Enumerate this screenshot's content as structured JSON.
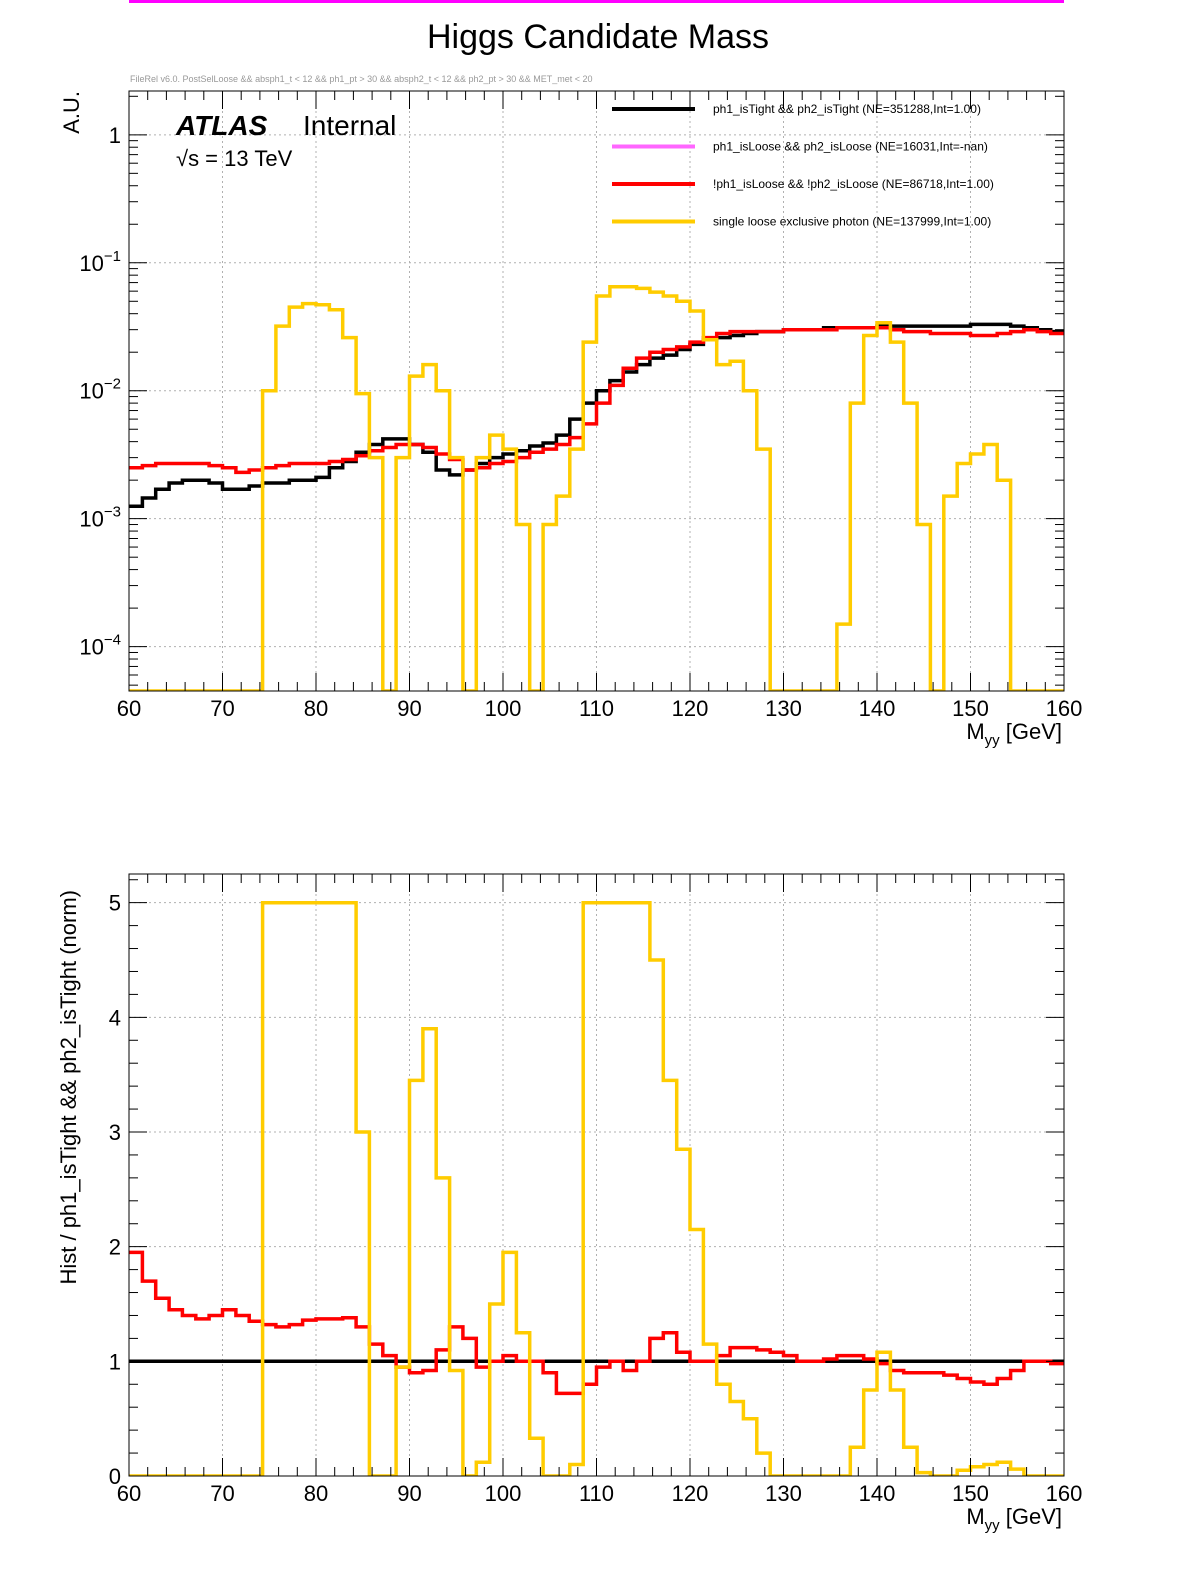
{
  "title": "Higgs Candidate Mass",
  "cut_string": "FileRel v6.0. PostSelLoose && absph1_t < 12 && ph1_pt > 30 && absph2_t < 12 && ph2_pt > 30 && MET_met < 20",
  "atlas_label": "ATLAS",
  "atlas_status": "Internal",
  "energy_label": "√s = 13 TeV",
  "colors": {
    "black": "#000000",
    "magenta": "#ff66ff",
    "red": "#ff0000",
    "yellow": "#ffcc00",
    "topline": "#ff00ff"
  },
  "chart_data": [
    {
      "type": "line",
      "title": "Higgs Candidate Mass",
      "xlabel": "M",
      "xlabel_sub": "yy",
      "xlabel_unit": " [GeV]",
      "ylabel": "A.U.",
      "yscale": "log",
      "xlim": [
        60,
        160
      ],
      "ylim": [
        4.5e-05,
        2.2
      ],
      "x_ticks": [
        60,
        70,
        80,
        90,
        100,
        110,
        120,
        130,
        140,
        150,
        160
      ],
      "x_tick_labels": [
        "60",
        "70",
        "80",
        "90",
        "100",
        "110",
        "120",
        "130",
        "140",
        "150",
        "160"
      ],
      "y_ticks": [
        1,
        0.1,
        0.01,
        0.001,
        0.0001
      ],
      "y_tick_labels": [
        {
          "base": "1",
          "exp": ""
        },
        {
          "base": "10",
          "exp": "−1"
        },
        {
          "base": "10",
          "exp": "−2"
        },
        {
          "base": "10",
          "exp": "−3"
        },
        {
          "base": "10",
          "exp": "−4"
        }
      ],
      "legend_position": "top-right",
      "bin_edges_start": 60,
      "bin_width": 1.4286,
      "series": [
        {
          "name": "ph1_isTight && ph2_isTight (NE=351288,Int=1.00)",
          "color": "#000000",
          "values": [
            0.00125,
            0.00145,
            0.0017,
            0.0019,
            0.002,
            0.002,
            0.0019,
            0.0017,
            0.0017,
            0.0018,
            0.0019,
            0.0019,
            0.002,
            0.002,
            0.0021,
            0.0025,
            0.0028,
            0.0033,
            0.0038,
            0.0042,
            0.0042,
            0.0038,
            0.0033,
            0.0024,
            0.0022,
            0.0024,
            0.0027,
            0.003,
            0.0032,
            0.0034,
            0.0037,
            0.0039,
            0.0045,
            0.006,
            0.008,
            0.01,
            0.012,
            0.014,
            0.016,
            0.018,
            0.019,
            0.021,
            0.023,
            0.025,
            0.026,
            0.027,
            0.028,
            0.029,
            0.029,
            0.03,
            0.03,
            0.03,
            0.031,
            0.031,
            0.031,
            0.031,
            0.032,
            0.032,
            0.032,
            0.032,
            0.032,
            0.032,
            0.032,
            0.033,
            0.033,
            0.033,
            0.032,
            0.031,
            0.03,
            0.029
          ]
        },
        {
          "name": "ph1_isLoose && ph2_isLoose (NE=16031,Int=-nan)",
          "color": "#ff66ff",
          "values": []
        },
        {
          "name": "!ph1_isLoose && !ph2_isLoose (NE=86718,Int=1.00)",
          "color": "#ff0000",
          "values": [
            0.0025,
            0.0026,
            0.0027,
            0.0027,
            0.0027,
            0.0027,
            0.0026,
            0.0025,
            0.0023,
            0.0024,
            0.0025,
            0.0026,
            0.0027,
            0.0027,
            0.0027,
            0.0028,
            0.0029,
            0.0031,
            0.0034,
            0.0036,
            0.0038,
            0.0038,
            0.0036,
            0.0032,
            0.0029,
            0.0024,
            0.0025,
            0.0027,
            0.0028,
            0.003,
            0.0033,
            0.0035,
            0.0038,
            0.0043,
            0.0055,
            0.008,
            0.011,
            0.015,
            0.018,
            0.02,
            0.021,
            0.022,
            0.024,
            0.026,
            0.028,
            0.029,
            0.029,
            0.029,
            0.029,
            0.03,
            0.03,
            0.03,
            0.03,
            0.031,
            0.031,
            0.031,
            0.031,
            0.03,
            0.029,
            0.029,
            0.028,
            0.028,
            0.028,
            0.027,
            0.027,
            0.028,
            0.029,
            0.03,
            0.029,
            0.028
          ]
        },
        {
          "name": "single loose exclusive photon (NE=137999,Int=1.00)",
          "color": "#ffcc00",
          "values": [
            0,
            0,
            0,
            0,
            0,
            0,
            0,
            0,
            0,
            0,
            0.01,
            0.032,
            0.045,
            0.048,
            0.047,
            0.043,
            0.026,
            0.0095,
            0.003,
            0,
            0.003,
            0.013,
            0.016,
            0.01,
            0.003,
            0,
            0.003,
            0.0045,
            0.0035,
            0.0009,
            0,
            0.0009,
            0.0015,
            0.0035,
            0.024,
            0.055,
            0.065,
            0.065,
            0.063,
            0.059,
            0.055,
            0.05,
            0.042,
            0.025,
            0.016,
            0.017,
            0.01,
            0.0035,
            0,
            0,
            0,
            0,
            0,
            0.00015,
            0.008,
            0.027,
            0.034,
            0.024,
            0.008,
            0.0009,
            0,
            0.0015,
            0.0027,
            0.0032,
            0.0038,
            0.002,
            0,
            0,
            0,
            0
          ]
        }
      ]
    },
    {
      "type": "line",
      "xlabel": "M",
      "xlabel_sub": "yy",
      "xlabel_unit": " [GeV]",
      "ylabel": "Hist / ph1_isTight && ph2_isTight (norm)",
      "xlim": [
        60,
        160
      ],
      "ylim": [
        0,
        5.25
      ],
      "x_ticks": [
        60,
        70,
        80,
        90,
        100,
        110,
        120,
        130,
        140,
        150,
        160
      ],
      "x_tick_labels": [
        "60",
        "70",
        "80",
        "90",
        "100",
        "110",
        "120",
        "130",
        "140",
        "150",
        "160"
      ],
      "y_ticks": [
        0,
        1,
        2,
        3,
        4,
        5
      ],
      "y_tick_labels": [
        "0",
        "1",
        "2",
        "3",
        "4",
        "5"
      ],
      "bin_edges_start": 60,
      "bin_width": 1.4286,
      "series": [
        {
          "name": "ph1_isTight && ph2_isTight",
          "color": "#000000",
          "values": [
            1,
            1,
            1,
            1,
            1,
            1,
            1,
            1,
            1,
            1,
            1,
            1,
            1,
            1,
            1,
            1,
            1,
            1,
            1,
            1,
            1,
            1,
            1,
            1,
            1,
            1,
            1,
            1,
            1,
            1,
            1,
            1,
            1,
            1,
            1,
            1,
            1,
            1,
            1,
            1,
            1,
            1,
            1,
            1,
            1,
            1,
            1,
            1,
            1,
            1,
            1,
            1,
            1,
            1,
            1,
            1,
            1,
            1,
            1,
            1,
            1,
            1,
            1,
            1,
            1,
            1,
            1,
            1,
            1,
            1
          ]
        },
        {
          "name": "!ph1_isLoose && !ph2_isLoose",
          "color": "#ff0000",
          "values": [
            1.95,
            1.7,
            1.55,
            1.45,
            1.4,
            1.37,
            1.4,
            1.45,
            1.4,
            1.35,
            1.32,
            1.3,
            1.32,
            1.36,
            1.37,
            1.37,
            1.38,
            1.3,
            1.15,
            1.05,
            0.95,
            0.9,
            0.92,
            1.1,
            1.3,
            1.2,
            0.95,
            1.0,
            1.05,
            1.0,
            1.0,
            0.9,
            0.72,
            0.72,
            0.8,
            0.95,
            1.0,
            0.92,
            1.0,
            1.2,
            1.25,
            1.08,
            1.0,
            1.0,
            1.05,
            1.12,
            1.12,
            1.1,
            1.08,
            1.05,
            1.0,
            1.0,
            1.02,
            1.05,
            1.05,
            1.02,
            0.98,
            0.92,
            0.9,
            0.9,
            0.9,
            0.88,
            0.85,
            0.82,
            0.8,
            0.85,
            0.92,
            1.0,
            1.0,
            0.98
          ]
        },
        {
          "name": "single loose exclusive photon",
          "color": "#ffcc00",
          "values": [
            0,
            0,
            0,
            0,
            0,
            0,
            0,
            0,
            0,
            0,
            5,
            5,
            5,
            5,
            5,
            5,
            5,
            3.0,
            0,
            0,
            0.95,
            3.45,
            3.9,
            2.6,
            0.92,
            0,
            0.12,
            1.5,
            1.95,
            1.25,
            0.33,
            0,
            0,
            0.1,
            5,
            5,
            5,
            5,
            5,
            4.5,
            3.45,
            2.85,
            2.15,
            1.15,
            0.8,
            0.65,
            0.5,
            0.2,
            0,
            0,
            0,
            0,
            0,
            0,
            0.25,
            0.75,
            1.08,
            0.75,
            0.25,
            0.03,
            0,
            0,
            0.05,
            0.08,
            0.1,
            0.12,
            0.06,
            0,
            0,
            0
          ]
        }
      ]
    }
  ]
}
